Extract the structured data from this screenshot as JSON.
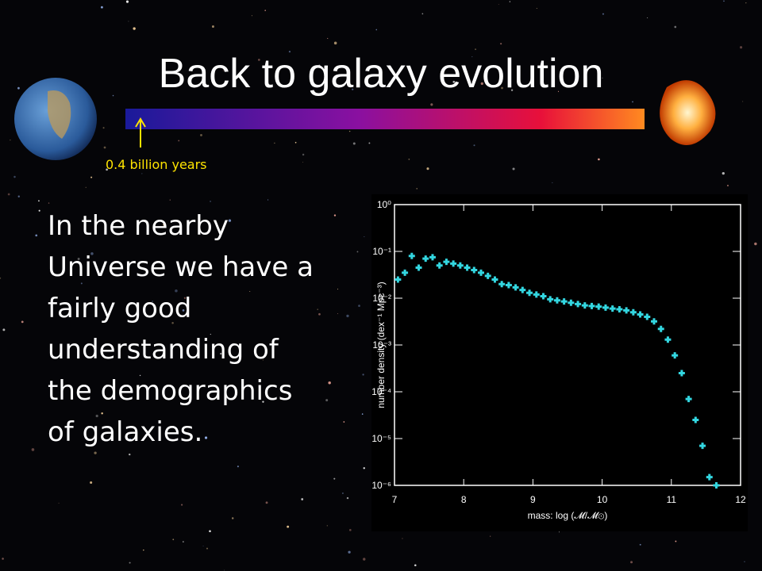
{
  "slide": {
    "title": "Back to galaxy evolution",
    "marker_label": "0.4 billion years",
    "body": [
      "In the nearby",
      "Universe we have a",
      "fairly good",
      "understanding of",
      "the demographics",
      "of galaxies."
    ]
  },
  "chart_data": {
    "type": "scatter",
    "xlabel": "mass: log (𝓜/𝓜⊙)",
    "ylabel": "number density (dex⁻¹ Mpc⁻³)",
    "x": [
      7.05,
      7.15,
      7.25,
      7.35,
      7.45,
      7.55,
      7.65,
      7.75,
      7.85,
      7.95,
      8.05,
      8.15,
      8.25,
      8.35,
      8.45,
      8.55,
      8.65,
      8.75,
      8.85,
      8.95,
      9.05,
      9.15,
      9.25,
      9.35,
      9.45,
      9.55,
      9.65,
      9.75,
      9.85,
      9.95,
      10.05,
      10.15,
      10.25,
      10.35,
      10.45,
      10.55,
      10.65,
      10.75,
      10.85,
      10.95,
      11.05,
      11.15,
      11.25,
      11.35,
      11.45,
      11.55,
      11.65
    ],
    "values": [
      0.025,
      0.035,
      0.08,
      0.045,
      0.07,
      0.075,
      0.05,
      0.06,
      0.055,
      0.05,
      0.045,
      0.04,
      0.035,
      0.03,
      0.025,
      0.02,
      0.019,
      0.017,
      0.015,
      0.013,
      0.012,
      0.011,
      0.0095,
      0.009,
      0.0085,
      0.008,
      0.0075,
      0.007,
      0.0068,
      0.0066,
      0.0063,
      0.006,
      0.0058,
      0.0055,
      0.005,
      0.0045,
      0.004,
      0.0032,
      0.0022,
      0.0013,
      0.0006,
      0.00025,
      7e-05,
      2.5e-05,
      7e-06,
      1.5e-06,
      1e-06
    ],
    "color": "#33d6e0",
    "xlim": [
      7,
      12
    ],
    "xticks": [
      7,
      8,
      9,
      10,
      11,
      12
    ],
    "ylim": [
      1e-06,
      1
    ],
    "log_y": true,
    "yticks": [
      {
        "value": 1,
        "label": "10⁰"
      },
      {
        "value": 0.1,
        "label": "10⁻¹"
      },
      {
        "value": 0.01,
        "label": "10⁻²"
      },
      {
        "value": 0.001,
        "label": "10⁻³"
      },
      {
        "value": 0.0001,
        "label": "10⁻⁴"
      },
      {
        "value": 1e-05,
        "label": "10⁻⁵"
      },
      {
        "value": 1e-06,
        "label": "10⁻⁶"
      }
    ]
  }
}
